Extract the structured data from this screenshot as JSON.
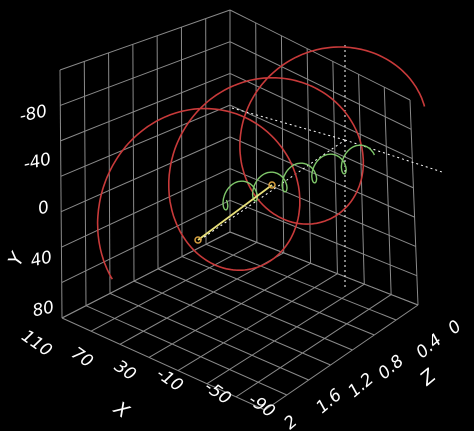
{
  "chart_data": {
    "type": "line3d",
    "background": "#000000",
    "grid": true,
    "grid_color": "#8a8a8a",
    "axes": {
      "x": {
        "label": "X",
        "ticks": [
          110,
          70,
          30,
          -10,
          -50,
          -90
        ],
        "range": [
          -90,
          110
        ]
      },
      "y": {
        "label": "Y",
        "ticks": [
          -80,
          -40,
          0,
          40,
          80
        ],
        "range": [
          -80,
          80
        ]
      },
      "z": {
        "label": "Z",
        "ticks": [
          0,
          0.4,
          0.8,
          1.2,
          1.6,
          2
        ],
        "range": [
          0,
          2
        ]
      }
    },
    "series": [
      {
        "kind": "outer-helix",
        "color": "#c83a3a",
        "turns": 2.6,
        "radius": 80,
        "center_x": 10,
        "center_y": 0
      },
      {
        "kind": "inner-helix",
        "color": "#7fc76a",
        "turns": 5,
        "radius": 10,
        "center_x": 10,
        "center_y": 0
      },
      {
        "kind": "probe-line",
        "color": "#e8e07a",
        "marker_color": "#d8a040"
      }
    ],
    "reference_lines": {
      "color": "#ffffff",
      "style": "dotted"
    }
  }
}
